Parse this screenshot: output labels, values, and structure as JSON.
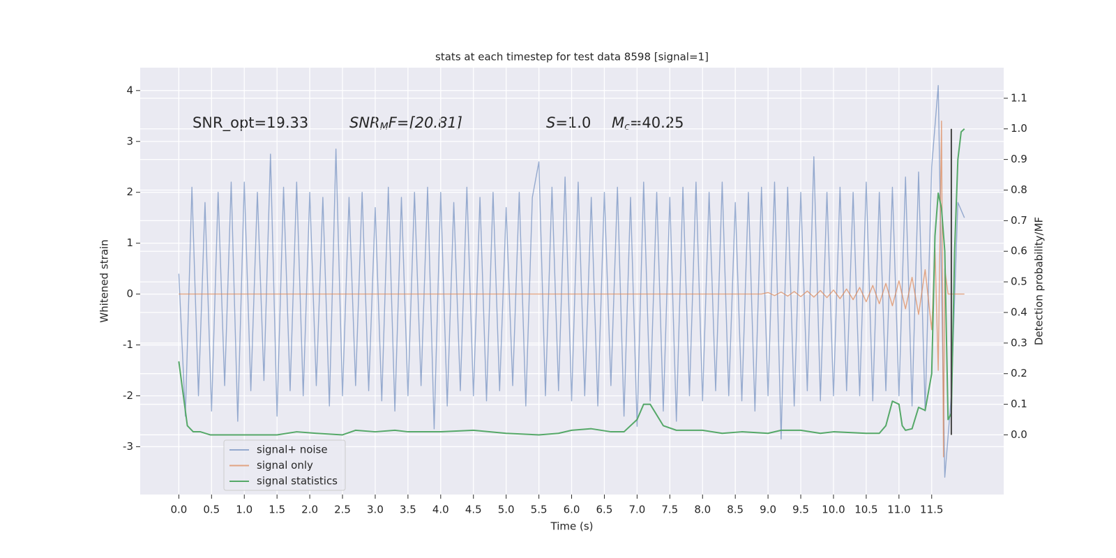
{
  "chart_data": {
    "type": "line",
    "title": "stats at each timestep for test data 8598 [signal=1]",
    "xlabel": "Time (s)",
    "ylabel": "Whitened strain",
    "y2label": "Detection probability/MF",
    "xlim": [
      -0.59,
      12.6
    ],
    "ylim": [
      -3.94,
      4.45
    ],
    "y2lim": [
      -0.195,
      1.2
    ],
    "xticks": [
      {
        "value": 0,
        "label": "0.0"
      },
      0.5,
      {
        "value": 1,
        "label": "1.0"
      },
      1.5,
      {
        "value": 2,
        "label": "2.0"
      },
      2.5,
      {
        "value": 3,
        "label": "3.0"
      },
      3.5,
      {
        "value": 4,
        "label": "4.0"
      },
      4.5,
      {
        "value": 5,
        "label": "5.0"
      },
      5.5,
      {
        "value": 6,
        "label": "6.0"
      },
      6.5,
      {
        "value": 7,
        "label": "7.0"
      },
      7.5,
      {
        "value": 8,
        "label": "8.0"
      },
      8.5,
      {
        "value": 9,
        "label": "9.0"
      },
      9.5,
      {
        "value": 10,
        "label": "10.0"
      },
      10.5,
      {
        "value": 11,
        "label": "11.0"
      },
      11.5
    ],
    "yticks": [
      -3,
      -2,
      -1,
      0,
      1,
      2,
      3,
      4
    ],
    "y2ticks": [
      {
        "value": 0,
        "label": "0.0"
      },
      0.1,
      0.2,
      0.3,
      0.4,
      0.5,
      0.6,
      0.7,
      0.8,
      0.9,
      {
        "value": 1,
        "label": "1.0"
      },
      1.1
    ],
    "grid": true,
    "legend": "lower left",
    "annotations": [
      {
        "main": "SNR_opt=19.33"
      },
      {
        "main": "SNR",
        "sub": "M",
        "rest": "F=[20.81]"
      },
      {
        "main": "S",
        "rest": "=1.0"
      },
      {
        "main": "M",
        "sub": "c",
        "rest": "=40.25"
      }
    ],
    "marker_line": {
      "x": 11.8,
      "ymin": 0,
      "ymax": 1.0,
      "axis": "y2",
      "color": "#444444"
    },
    "series": [
      {
        "name": "signal+ noise",
        "color": "#4c72b0",
        "opacity": 0.55,
        "axis": "y",
        "x": [
          0,
          0.1,
          0.2,
          0.3,
          0.4,
          0.5,
          0.6,
          0.7,
          0.8,
          0.9,
          1,
          1.1,
          1.2,
          1.3,
          1.4,
          1.5,
          1.6,
          1.7,
          1.8,
          1.9,
          2,
          2.1,
          2.2,
          2.3,
          2.4,
          2.5,
          2.6,
          2.7,
          2.8,
          2.9,
          3,
          3.1,
          3.2,
          3.3,
          3.4,
          3.5,
          3.6,
          3.7,
          3.8,
          3.9,
          4,
          4.1,
          4.2,
          4.3,
          4.4,
          4.5,
          4.6,
          4.7,
          4.8,
          4.9,
          5,
          5.1,
          5.2,
          5.3,
          5.4,
          5.5,
          5.6,
          5.7,
          5.8,
          5.9,
          6,
          6.1,
          6.2,
          6.3,
          6.4,
          6.5,
          6.6,
          6.7,
          6.8,
          6.9,
          7,
          7.1,
          7.2,
          7.3,
          7.4,
          7.5,
          7.6,
          7.7,
          7.8,
          7.9,
          8,
          8.1,
          8.2,
          8.3,
          8.4,
          8.5,
          8.6,
          8.7,
          8.8,
          8.9,
          9,
          9.1,
          9.2,
          9.3,
          9.4,
          9.5,
          9.6,
          9.7,
          9.8,
          9.9,
          10,
          10.1,
          10.2,
          10.3,
          10.4,
          10.5,
          10.6,
          10.7,
          10.8,
          10.9,
          11,
          11.1,
          11.2,
          11.3,
          11.4,
          11.5,
          11.6,
          11.7,
          11.8,
          11.9,
          12
        ],
        "values": [
          0.4,
          -2.4,
          2.1,
          -2.0,
          1.8,
          -2.3,
          2.0,
          -1.8,
          2.2,
          -2.5,
          2.2,
          -1.9,
          2.0,
          -1.7,
          2.75,
          -2.4,
          2.1,
          -1.9,
          2.2,
          -2.0,
          2.0,
          -1.8,
          1.9,
          -2.2,
          2.85,
          -2.0,
          1.9,
          -1.8,
          2.0,
          -1.9,
          1.7,
          -2.1,
          2.1,
          -2.3,
          1.9,
          -2.0,
          2.0,
          -1.8,
          2.1,
          -2.65,
          2.0,
          -2.2,
          1.8,
          -1.9,
          2.1,
          -2.0,
          1.9,
          -2.1,
          2.0,
          -1.9,
          1.7,
          -1.8,
          2.0,
          -2.2,
          1.9,
          2.6,
          -2.0,
          2.1,
          -1.9,
          2.3,
          -2.1,
          2.2,
          -2.0,
          1.9,
          -2.2,
          2.0,
          -1.8,
          2.1,
          -2.4,
          1.9,
          -2.6,
          2.2,
          -2.1,
          2.0,
          -2.3,
          1.9,
          -2.5,
          2.1,
          -2.0,
          2.2,
          -2.1,
          2.0,
          -1.9,
          2.2,
          -2.0,
          1.8,
          -2.1,
          2.0,
          -2.3,
          2.1,
          -2.0,
          2.2,
          -2.85,
          2.1,
          -2.2,
          2.0,
          -1.9,
          2.7,
          -2.1,
          2.0,
          -2.0,
          2.1,
          -1.9,
          2.0,
          -2.0,
          2.2,
          -2.1,
          2.0,
          -1.9,
          2.1,
          -2.0,
          2.3,
          -2.2,
          2.4,
          -2.3,
          2.5,
          4.1,
          -3.6,
          -2.0,
          1.8,
          1.5
        ]
      },
      {
        "name": "signal only",
        "color": "#dd8452",
        "opacity": 0.7,
        "axis": "y",
        "x": [
          0,
          3,
          6,
          8.9,
          9.0,
          9.1,
          9.2,
          9.3,
          9.4,
          9.5,
          9.6,
          9.7,
          9.8,
          9.9,
          10.0,
          10.1,
          10.2,
          10.3,
          10.4,
          10.5,
          10.6,
          10.7,
          10.8,
          10.9,
          11.0,
          11.1,
          11.2,
          11.3,
          11.4,
          11.5,
          11.55,
          11.6,
          11.65,
          11.68,
          11.7,
          11.75,
          12
        ],
        "values": [
          0,
          0,
          0,
          0,
          0.03,
          -0.03,
          0.04,
          -0.04,
          0.05,
          -0.05,
          0.06,
          -0.06,
          0.07,
          -0.07,
          0.08,
          -0.09,
          0.1,
          -0.11,
          0.13,
          -0.15,
          0.17,
          -0.19,
          0.21,
          -0.23,
          0.26,
          -0.29,
          0.33,
          -0.4,
          0.48,
          -0.7,
          0.9,
          -1.5,
          3.4,
          -3.2,
          0.5,
          0,
          0
        ]
      },
      {
        "name": "signal statistics",
        "color": "#55a868",
        "opacity": 1,
        "axis": "y2",
        "x": [
          0,
          0.13,
          0.22,
          0.33,
          0.48,
          1.0,
          1.5,
          1.8,
          2.1,
          2.5,
          2.7,
          3.0,
          3.3,
          3.5,
          4.0,
          4.5,
          5.0,
          5.5,
          5.8,
          6.0,
          6.3,
          6.6,
          6.8,
          7.0,
          7.1,
          7.2,
          7.4,
          7.6,
          8.0,
          8.3,
          8.6,
          9.0,
          9.2,
          9.5,
          9.8,
          10.0,
          10.5,
          10.7,
          10.8,
          10.9,
          11.0,
          11.05,
          11.1,
          11.2,
          11.3,
          11.4,
          11.5,
          11.55,
          11.6,
          11.65,
          11.7,
          11.75,
          11.8,
          11.85,
          11.9,
          11.95,
          12.0
        ],
        "values": [
          0.24,
          0.03,
          0.01,
          0.01,
          0.0,
          0.0,
          0.0,
          0.01,
          0.005,
          0.0,
          0.015,
          0.01,
          0.015,
          0.01,
          0.01,
          0.015,
          0.005,
          0.0,
          0.005,
          0.015,
          0.02,
          0.01,
          0.01,
          0.05,
          0.1,
          0.1,
          0.03,
          0.015,
          0.015,
          0.005,
          0.01,
          0.005,
          0.015,
          0.015,
          0.005,
          0.01,
          0.005,
          0.005,
          0.03,
          0.11,
          0.1,
          0.03,
          0.015,
          0.02,
          0.09,
          0.08,
          0.2,
          0.65,
          0.79,
          0.74,
          0.6,
          0.05,
          0.07,
          0.6,
          0.9,
          0.99,
          1.0
        ]
      }
    ]
  }
}
